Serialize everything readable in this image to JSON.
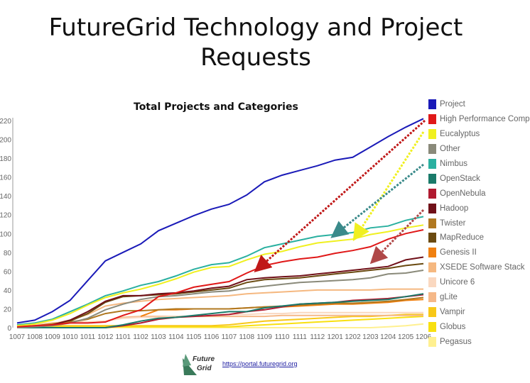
{
  "slide": {
    "title": "FutureGrid Technology and Project Requests",
    "subtitle": "Total Projects and Categories",
    "footer_url": "https://portal.futuregrid.org",
    "logo_text": "Future Grid"
  },
  "chart_data": {
    "type": "line",
    "title": "Total Projects and Categories",
    "xlabel": "",
    "ylabel": "",
    "ylim": [
      0,
      220
    ],
    "yticks": [
      0,
      20,
      40,
      60,
      80,
      100,
      120,
      140,
      160,
      180,
      200,
      220
    ],
    "grid": false,
    "legend_position": "right",
    "categories": [
      "1007",
      "1008",
      "1009",
      "1010",
      "1011",
      "1012",
      "1101",
      "1102",
      "1103",
      "1104",
      "1105",
      "1106",
      "1107",
      "1108",
      "1109",
      "1110",
      "1111",
      "1112",
      "1201",
      "1202",
      "1203",
      "1204",
      "1205",
      "1206"
    ],
    "series": [
      {
        "name": "Project",
        "color": "#1a1ab8",
        "values": [
          5,
          8,
          17,
          29,
          50,
          71,
          80,
          89,
          103,
          111,
          119,
          126,
          131,
          141,
          155,
          162,
          167,
          172,
          178,
          181,
          192,
          203,
          213,
          222
        ]
      },
      {
        "name": "High Performance Comp",
        "color": "#e01818",
        "values": [
          1,
          2,
          3,
          5,
          5,
          6,
          13,
          19,
          33,
          37,
          43,
          46,
          49,
          58,
          66,
          70,
          73,
          75,
          79,
          82,
          86,
          94,
          100,
          104
        ]
      },
      {
        "name": "Eucalyptus",
        "color": "#f0f020",
        "values": [
          2,
          4,
          8,
          15,
          24,
          32,
          37,
          41,
          46,
          52,
          59,
          64,
          65,
          72,
          78,
          81,
          86,
          90,
          92,
          94,
          99,
          102,
          106,
          109
        ]
      },
      {
        "name": "Other",
        "color": "#8a8a7a",
        "values": [
          0,
          1,
          2,
          5,
          10,
          19,
          25,
          30,
          33,
          34,
          36,
          38,
          39,
          42,
          44,
          46,
          48,
          49,
          50,
          51,
          53,
          57,
          58,
          61
        ]
      },
      {
        "name": "Nimbus",
        "color": "#2ab0a0",
        "values": [
          3,
          5,
          9,
          17,
          25,
          34,
          39,
          45,
          49,
          55,
          62,
          67,
          69,
          76,
          85,
          89,
          93,
          97,
          99,
          101,
          106,
          108,
          114,
          118
        ]
      },
      {
        "name": "OpenStack",
        "color": "#1a7a6a",
        "values": [
          0,
          0,
          0,
          0,
          0,
          0,
          3,
          7,
          10,
          11,
          13,
          15,
          17,
          17,
          21,
          23,
          25,
          26,
          27,
          28,
          29,
          30,
          33,
          36
        ]
      },
      {
        "name": "OpenNebula",
        "color": "#b01a30",
        "values": [
          0,
          0,
          0,
          0,
          0,
          0,
          2,
          5,
          9,
          11,
          12,
          13,
          14,
          17,
          19,
          22,
          25,
          26,
          27,
          29,
          30,
          31,
          33,
          35
        ]
      },
      {
        "name": "Hadoop",
        "color": "#701018",
        "values": [
          0,
          1,
          3,
          8,
          17,
          28,
          34,
          34,
          36,
          37,
          39,
          42,
          44,
          51,
          53,
          54,
          55,
          57,
          59,
          61,
          63,
          65,
          72,
          75
        ]
      },
      {
        "name": "Twister",
        "color": "#b07820",
        "values": [
          1,
          2,
          4,
          6,
          9,
          15,
          18,
          18,
          19,
          20,
          20,
          20,
          20,
          21,
          22,
          23,
          24,
          25,
          26,
          26,
          27,
          28,
          30,
          32
        ]
      },
      {
        "name": "MapReduce",
        "color": "#6a4a10",
        "values": [
          0,
          1,
          3,
          7,
          15,
          27,
          33,
          34,
          35,
          36,
          38,
          40,
          42,
          48,
          51,
          52,
          53,
          55,
          57,
          59,
          61,
          63,
          66,
          68
        ]
      },
      {
        "name": "Genesis II",
        "color": "#f08010",
        "values": [
          null,
          null,
          null,
          null,
          null,
          null,
          null,
          12,
          19,
          19,
          20,
          20,
          20,
          21,
          22,
          22,
          23,
          24,
          25,
          25,
          26,
          27,
          29,
          30
        ]
      },
      {
        "name": "XSEDE Software Stack",
        "color": "#f5b880",
        "values": [
          1,
          2,
          4,
          8,
          14,
          23,
          26,
          28,
          30,
          31,
          32,
          33,
          34,
          36,
          37,
          38,
          39,
          40,
          40,
          40,
          40,
          41,
          41,
          41
        ]
      },
      {
        "name": "Unicore 6",
        "color": "#fad8c0",
        "values": [
          2,
          3,
          4,
          5,
          6,
          7,
          10,
          11,
          11,
          12,
          12,
          13,
          14,
          14,
          15,
          15,
          16,
          16,
          16,
          16,
          16,
          16,
          16,
          16
        ]
      },
      {
        "name": "gLite",
        "color": "#f5b888",
        "values": [
          3,
          3,
          5,
          6,
          6,
          7,
          11,
          12,
          12,
          12,
          12,
          12,
          12,
          12,
          12,
          13,
          13,
          13,
          13,
          13,
          13,
          13,
          13,
          13
        ]
      },
      {
        "name": "Vampir",
        "color": "#f8c818",
        "values": [
          2,
          2,
          2,
          2,
          2,
          2,
          2,
          2,
          2,
          2,
          2,
          2,
          3,
          5,
          7,
          8,
          9,
          10,
          11,
          12,
          12,
          13,
          14,
          14
        ]
      },
      {
        "name": "Globus",
        "color": "#f8e010",
        "values": [
          1,
          1,
          1,
          1,
          1,
          1,
          1,
          1,
          1,
          1,
          1,
          1,
          1,
          2,
          3,
          4,
          5,
          6,
          7,
          8,
          9,
          10,
          11,
          12
        ]
      },
      {
        "name": "Pegasus",
        "color": "#fff090",
        "values": [
          0,
          0,
          0,
          0,
          0,
          0,
          0,
          0,
          0,
          0,
          0,
          0,
          0,
          0,
          0,
          0,
          0,
          0,
          0,
          0,
          0,
          1,
          2,
          4
        ]
      }
    ]
  }
}
